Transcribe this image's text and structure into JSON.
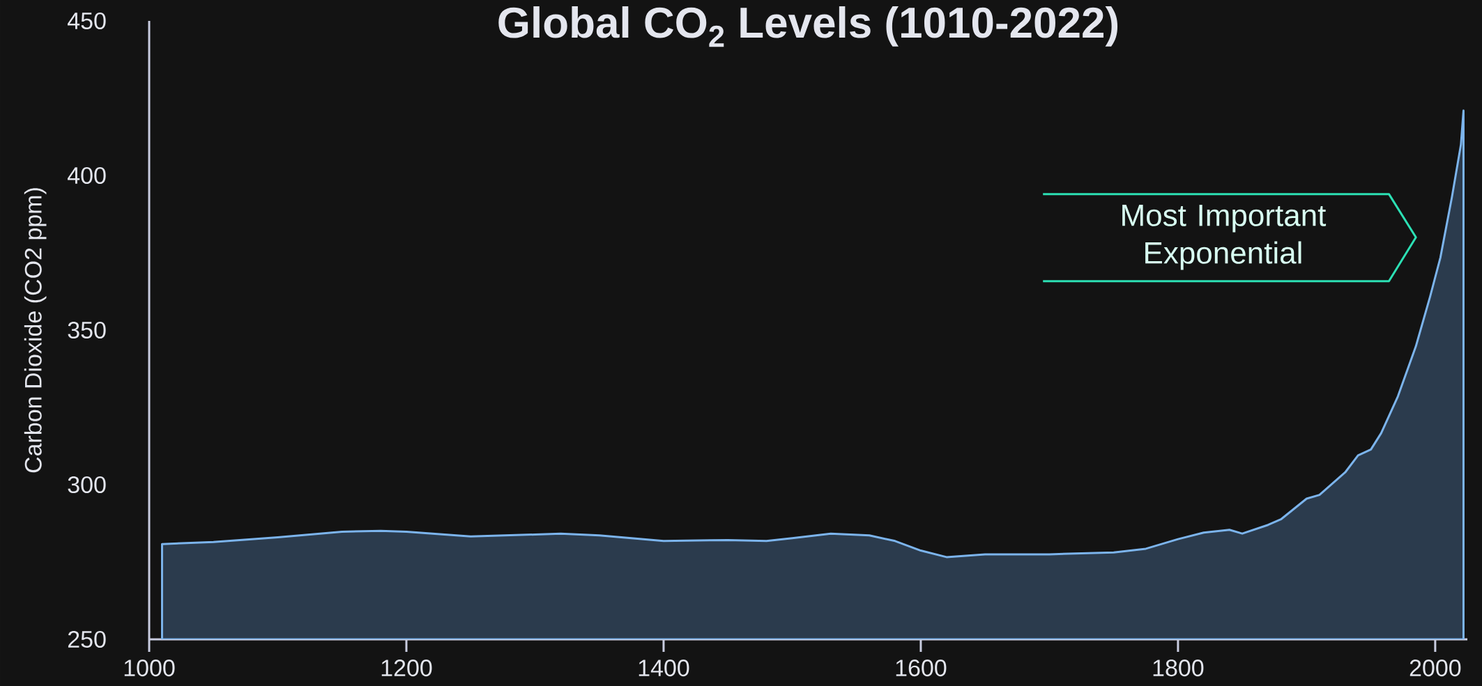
{
  "chart_data": {
    "type": "area",
    "title": "Global CO$_{2}$ Levels (1010-2022)",
    "ylabel": "Carbon Dioxide (CO2 ppm)",
    "annotations": [
      "Most Important Exponential"
    ],
    "x": [
      1010,
      1050,
      1100,
      1150,
      1180,
      1200,
      1250,
      1300,
      1320,
      1350,
      1400,
      1450,
      1480,
      1500,
      1530,
      1560,
      1580,
      1600,
      1620,
      1650,
      1700,
      1750,
      1775,
      1800,
      1820,
      1840,
      1850,
      1870,
      1880,
      1900,
      1910,
      1930,
      1940,
      1950,
      1958,
      1971,
      1985,
      1996,
      2004,
      2013,
      2020,
      2022
    ],
    "values": [
      280.8,
      281.5,
      283,
      284.8,
      285.1,
      284.8,
      283.3,
      283.9,
      284.2,
      283.6,
      281.8,
      282.1,
      281.8,
      282.7,
      284.2,
      283.6,
      281.8,
      278.7,
      276.6,
      277.5,
      277.5,
      278.1,
      279.3,
      282.4,
      284.5,
      285.4,
      284.2,
      287,
      288.8,
      295.5,
      296.7,
      304,
      309.5,
      311.4,
      316.7,
      328.6,
      344.8,
      360.8,
      373.4,
      393,
      410,
      421
    ],
    "color": "#2b3b4d",
    "xlim": [
      1000,
      2025
    ],
    "ylim": [
      250,
      450
    ],
    "xticks": [
      1000,
      1200,
      1400,
      1600,
      1800,
      2000
    ],
    "yticks": [
      250,
      300,
      350,
      400,
      450
    ]
  }
}
